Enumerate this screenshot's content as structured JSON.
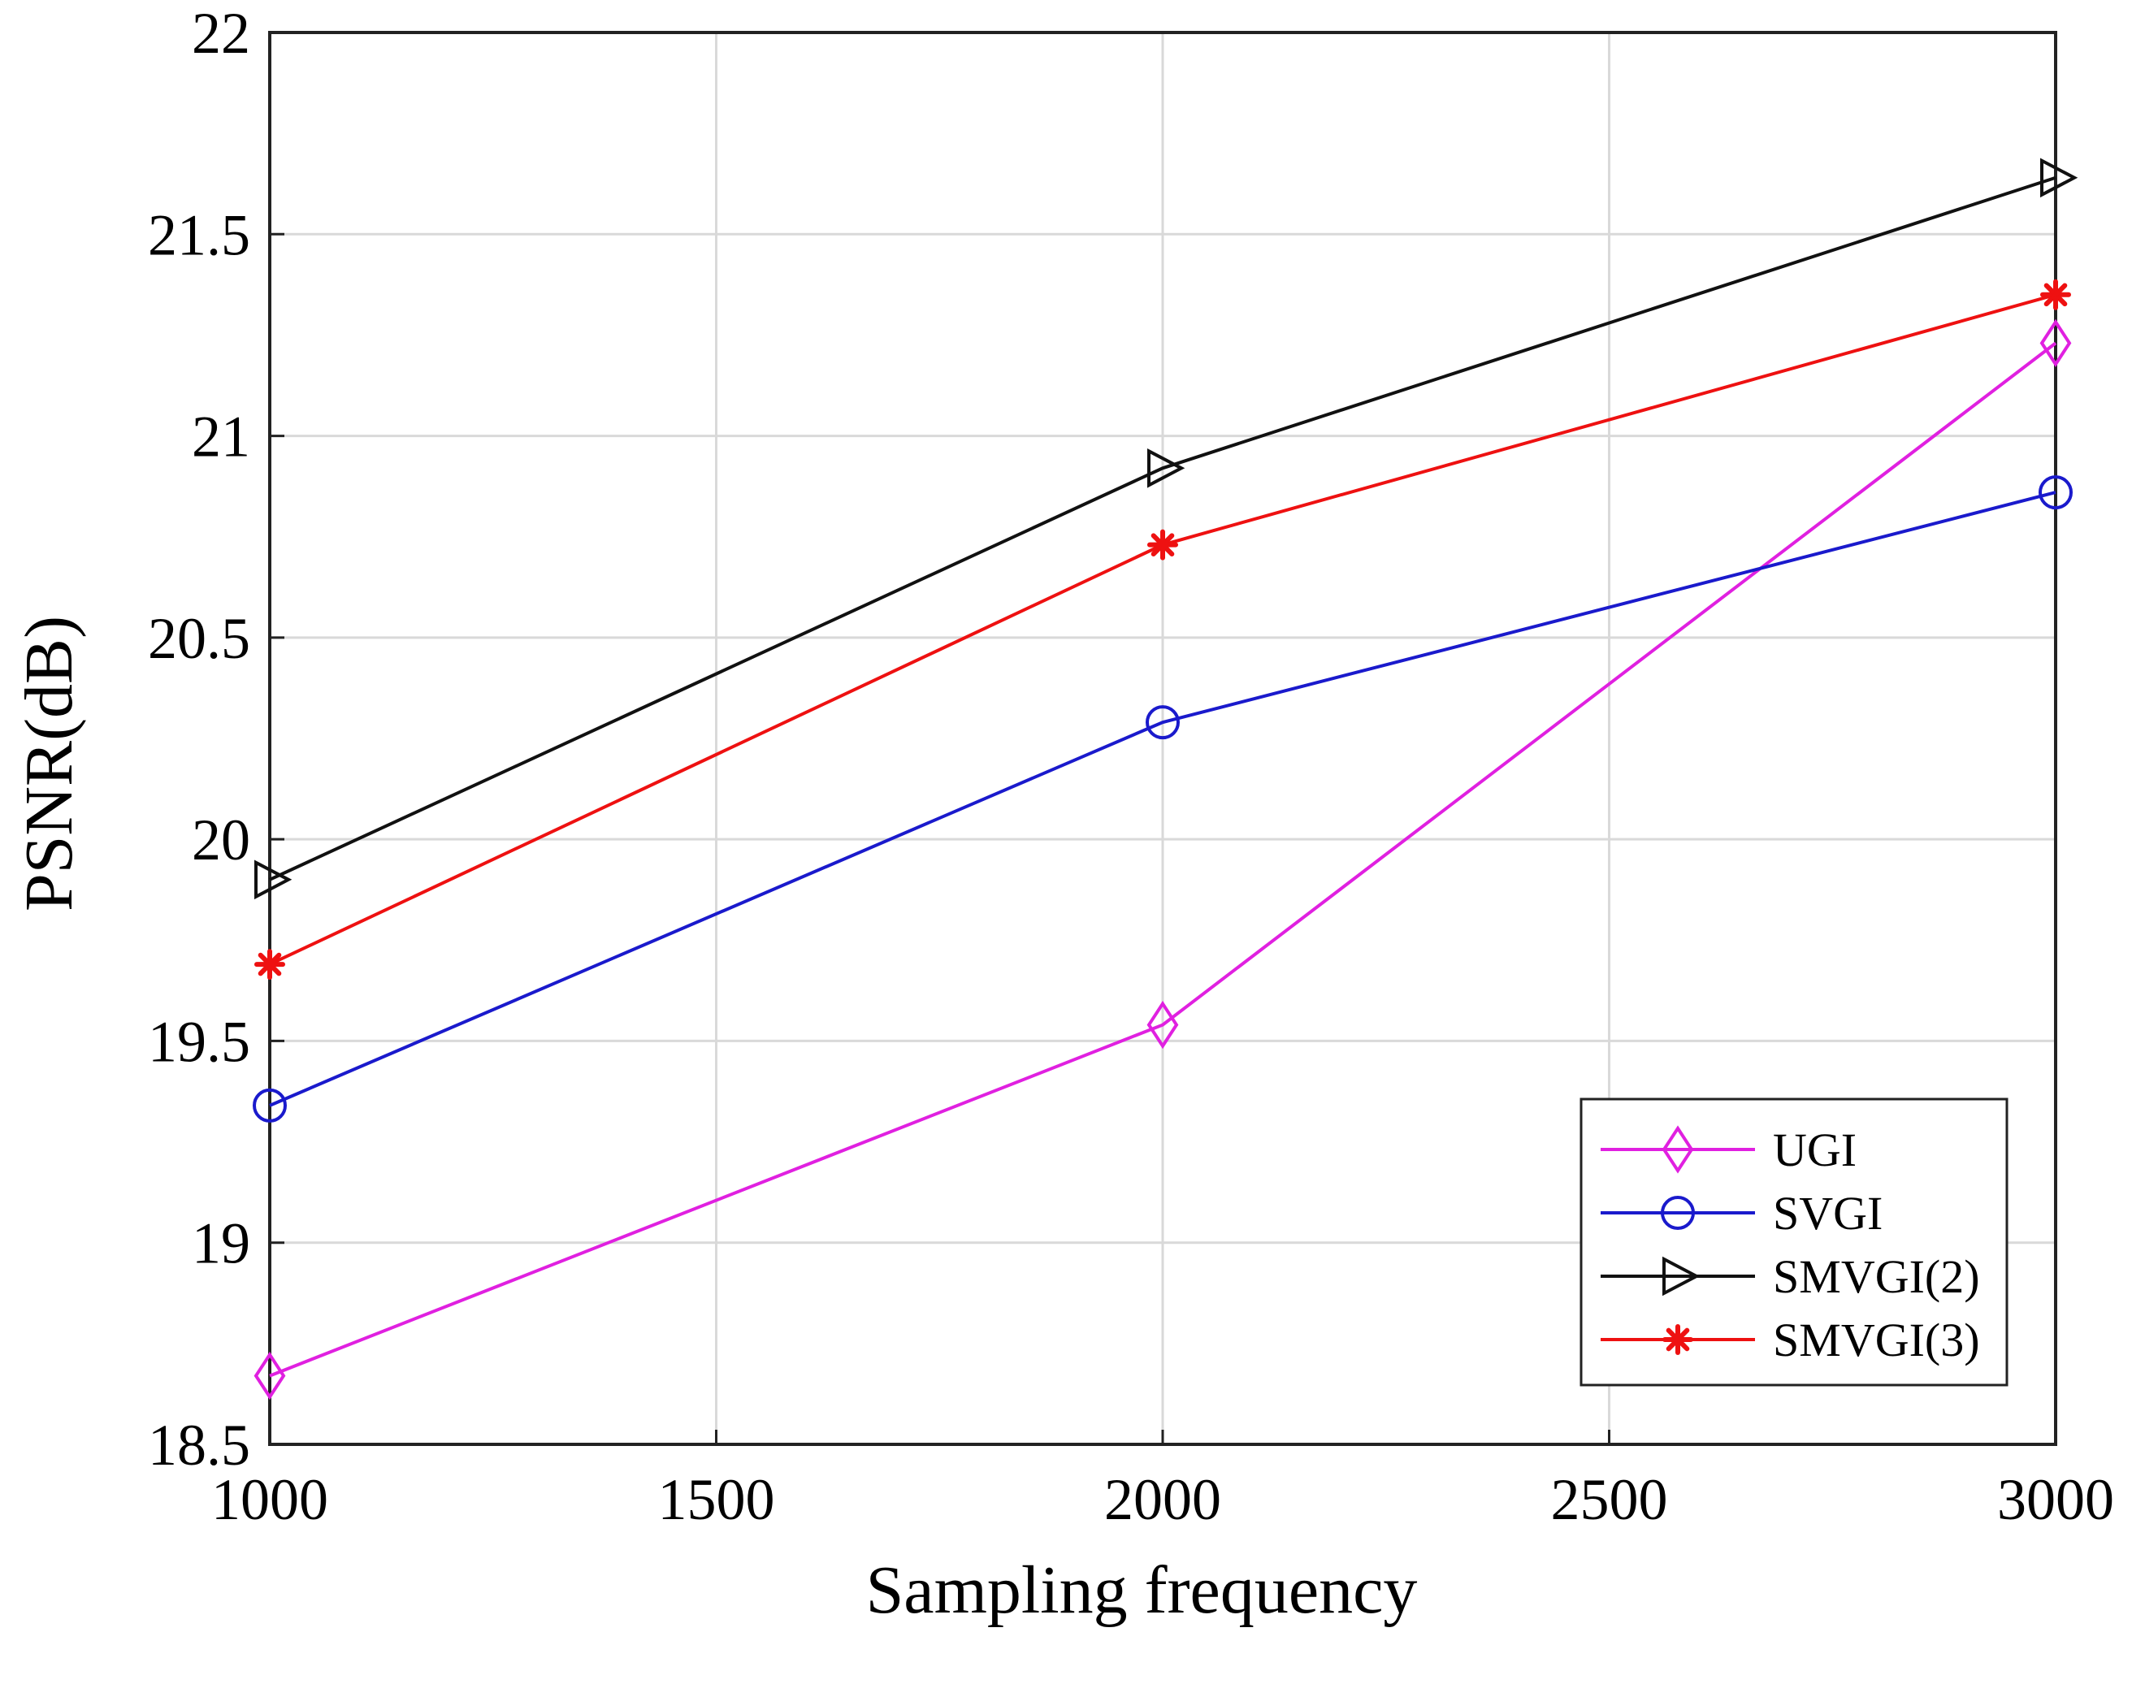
{
  "chart_data": {
    "type": "line",
    "title": "",
    "xlabel": "Sampling frequency",
    "ylabel": "PSNR(dB)",
    "x": [
      1000,
      2000,
      3000
    ],
    "xlim": [
      1000,
      3000
    ],
    "ylim": [
      18.5,
      22
    ],
    "xticks": [
      1000,
      1500,
      2000,
      2500,
      3000
    ],
    "yticks": [
      18.5,
      19,
      19.5,
      20,
      20.5,
      21,
      21.5,
      22
    ],
    "xtick_labels": [
      "1000",
      "1500",
      "2000",
      "2500",
      "3000"
    ],
    "ytick_labels": [
      "18.5",
      "19",
      "19.5",
      "20",
      "20.5",
      "21",
      "21.5",
      "22"
    ],
    "grid": true,
    "legend_position": "bottom-right",
    "series": [
      {
        "name": "UGI",
        "values": [
          18.67,
          19.54,
          21.23
        ],
        "color": "#e020e0",
        "marker": "diamond"
      },
      {
        "name": "SVGI",
        "values": [
          19.34,
          20.29,
          20.86
        ],
        "color": "#1a1acc",
        "marker": "circle"
      },
      {
        "name": "SMVGI(2)",
        "values": [
          19.9,
          20.92,
          21.64
        ],
        "color": "#111111",
        "marker": "triangle-right"
      },
      {
        "name": "SMVGI(3)",
        "values": [
          19.69,
          20.73,
          21.35
        ],
        "color": "#ee1111",
        "marker": "star"
      }
    ]
  }
}
